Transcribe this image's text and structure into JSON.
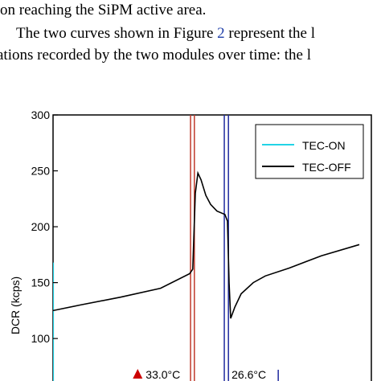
{
  "text_lines": [
    [
      "on reaching the SiPM active area."
    ],
    [
      "The two curves shown in Figure ",
      "2",
      " represent the l"
    ],
    [
      "ations recorded by the two modules over time: the l"
    ]
  ],
  "chart_data": {
    "type": "line",
    "y_label": "DCR (kcps)",
    "xlim": [
      0,
      100
    ],
    "ylim": [
      62,
      300
    ],
    "yticks": [
      100,
      150,
      200,
      250,
      300
    ],
    "legend": "top-right",
    "series": [
      {
        "name": "TEC-ON",
        "color": "#22d3e6",
        "x": [
          0,
          0
        ],
        "values": [
          168,
          62
        ]
      },
      {
        "name": "TEC-OFF",
        "color": "#000000",
        "x": [
          0,
          8.6,
          21.2,
          33.8,
          42.9,
          43.9,
          44.7,
          45.5,
          46.5,
          48,
          49.5,
          51.5,
          54,
          54.8,
          55.3,
          55.8,
          57.1,
          59.1,
          62.9,
          66.7,
          74.2,
          84.3,
          96.2
        ],
        "values": [
          125,
          130,
          137,
          145,
          158,
          162,
          230,
          248,
          242,
          228,
          220,
          214,
          211,
          205,
          150,
          118,
          128,
          140,
          150,
          156,
          163,
          174,
          184
        ]
      }
    ],
    "vlines": [
      {
        "x": 43.2,
        "color": "#c0392b"
      },
      {
        "x": 44.4,
        "color": "#c0392b"
      },
      {
        "x": 53.8,
        "color": "#1f2a9e"
      },
      {
        "x": 55.1,
        "color": "#1f2a9e"
      }
    ],
    "annotations": [
      {
        "text": "33.0°C",
        "x": 27.6,
        "color": "#cc0000",
        "marker": "▲"
      },
      {
        "text": "26.6°C",
        "x": 56.1,
        "color": "#1f2a9e",
        "marker": "|"
      }
    ]
  }
}
